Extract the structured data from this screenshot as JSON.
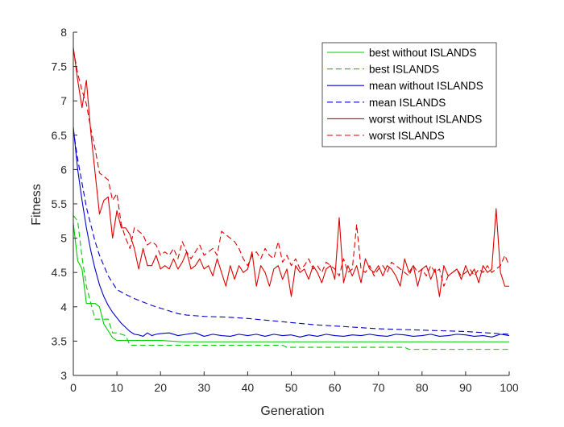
{
  "chart_data": {
    "type": "line",
    "title": "",
    "xlabel": "Generation",
    "ylabel": "Fitness",
    "xlim": [
      0,
      100
    ],
    "ylim": [
      3,
      8
    ],
    "x_ticks": [
      "0",
      "10",
      "20",
      "30",
      "40",
      "50",
      "60",
      "70",
      "80",
      "90",
      "100"
    ],
    "y_ticks": [
      "3",
      "3.5",
      "4",
      "4.5",
      "5",
      "5.5",
      "6",
      "6.5",
      "7",
      "7.5",
      "8"
    ],
    "grid": false,
    "legend_position": "top-right",
    "series": [
      {
        "name": "best without ISLANDS",
        "color": "#00cc00",
        "dash": "solid",
        "x": [
          0,
          1,
          2,
          3,
          4,
          5,
          6,
          7,
          8,
          9,
          10,
          11,
          12,
          13,
          14,
          15,
          20,
          25,
          30,
          40,
          50,
          60,
          70,
          80,
          90,
          100
        ],
        "y": [
          5.22,
          4.67,
          4.55,
          4.05,
          4.05,
          4.05,
          4.0,
          3.75,
          3.65,
          3.55,
          3.51,
          3.51,
          3.51,
          3.51,
          3.51,
          3.51,
          3.51,
          3.49,
          3.49,
          3.49,
          3.49,
          3.49,
          3.49,
          3.49,
          3.49,
          3.49
        ]
      },
      {
        "name": "best ISLANDS",
        "color": "#00cc00",
        "dash": "dashed",
        "x": [
          0,
          1,
          2,
          3,
          4,
          5,
          6,
          7,
          8,
          9,
          10,
          11,
          12,
          13,
          14,
          20,
          30,
          40,
          48,
          49,
          60,
          70,
          76,
          77,
          80,
          90,
          100
        ],
        "y": [
          5.33,
          5.25,
          4.72,
          4.3,
          4.05,
          3.82,
          3.82,
          3.82,
          3.82,
          3.62,
          3.62,
          3.6,
          3.58,
          3.44,
          3.44,
          3.44,
          3.44,
          3.44,
          3.44,
          3.41,
          3.41,
          3.41,
          3.41,
          3.38,
          3.38,
          3.38,
          3.38
        ]
      },
      {
        "name": "mean without ISLANDS",
        "color": "#0000cc",
        "dash": "solid",
        "x": [
          0,
          1,
          2,
          3,
          4,
          5,
          6,
          7,
          8,
          9,
          10,
          11,
          12,
          13,
          14,
          15,
          16,
          17,
          18,
          19,
          20,
          22,
          24,
          26,
          28,
          30,
          32,
          34,
          36,
          38,
          40,
          42,
          44,
          46,
          48,
          50,
          52,
          54,
          56,
          58,
          60,
          62,
          64,
          66,
          68,
          70,
          72,
          74,
          76,
          78,
          80,
          82,
          84,
          86,
          88,
          90,
          92,
          94,
          96,
          98,
          100
        ],
        "y": [
          6.62,
          6.0,
          5.55,
          5.15,
          4.82,
          4.55,
          4.32,
          4.15,
          4.02,
          3.92,
          3.84,
          3.76,
          3.7,
          3.64,
          3.6,
          3.59,
          3.57,
          3.62,
          3.58,
          3.6,
          3.61,
          3.62,
          3.58,
          3.6,
          3.62,
          3.57,
          3.6,
          3.58,
          3.57,
          3.6,
          3.58,
          3.6,
          3.57,
          3.6,
          3.58,
          3.59,
          3.56,
          3.59,
          3.57,
          3.6,
          3.58,
          3.57,
          3.59,
          3.58,
          3.6,
          3.58,
          3.57,
          3.6,
          3.59,
          3.57,
          3.58,
          3.6,
          3.57,
          3.58,
          3.6,
          3.59,
          3.57,
          3.58,
          3.56,
          3.6,
          3.58
        ]
      },
      {
        "name": "mean ISLANDS",
        "color": "#0000cc",
        "dash": "dashed",
        "x": [
          0,
          1,
          2,
          3,
          4,
          5,
          6,
          7,
          8,
          9,
          10,
          12,
          14,
          16,
          18,
          20,
          22,
          24,
          26,
          28,
          30,
          35,
          40,
          45,
          50,
          55,
          60,
          65,
          70,
          75,
          80,
          85,
          90,
          95,
          100
        ],
        "y": [
          6.58,
          6.15,
          5.8,
          5.45,
          5.2,
          4.95,
          4.75,
          4.6,
          4.45,
          4.35,
          4.25,
          4.18,
          4.12,
          4.07,
          4.02,
          3.98,
          3.94,
          3.9,
          3.88,
          3.87,
          3.86,
          3.85,
          3.83,
          3.8,
          3.77,
          3.74,
          3.72,
          3.7,
          3.68,
          3.67,
          3.66,
          3.65,
          3.64,
          3.62,
          3.6
        ]
      },
      {
        "name": "worst without ISLANDS",
        "color": "#dd0000",
        "dash": "solid",
        "x": [
          0,
          1,
          2,
          3,
          4,
          5,
          6,
          7,
          8,
          9,
          10,
          11,
          12,
          13,
          14,
          15,
          16,
          17,
          18,
          19,
          20,
          21,
          22,
          23,
          24,
          25,
          26,
          27,
          28,
          29,
          30,
          31,
          32,
          33,
          34,
          35,
          36,
          37,
          38,
          39,
          40,
          41,
          42,
          43,
          44,
          45,
          46,
          47,
          48,
          49,
          50,
          51,
          52,
          53,
          54,
          55,
          56,
          57,
          58,
          59,
          60,
          61,
          62,
          63,
          64,
          65,
          66,
          67,
          68,
          69,
          70,
          71,
          72,
          73,
          74,
          75,
          76,
          77,
          78,
          79,
          80,
          81,
          82,
          83,
          84,
          85,
          86,
          87,
          88,
          89,
          90,
          91,
          92,
          93,
          94,
          95,
          96,
          97,
          98,
          99,
          100
        ],
        "y": [
          7.78,
          7.3,
          6.9,
          7.3,
          6.55,
          5.95,
          5.35,
          5.55,
          5.6,
          5.0,
          5.4,
          5.15,
          5.15,
          5.05,
          4.85,
          4.55,
          4.85,
          4.6,
          4.6,
          4.75,
          4.55,
          4.6,
          4.55,
          4.7,
          4.55,
          4.65,
          4.8,
          4.55,
          4.6,
          4.7,
          4.55,
          4.6,
          4.45,
          4.7,
          4.5,
          4.3,
          4.6,
          4.4,
          4.6,
          4.5,
          4.55,
          4.8,
          4.3,
          4.6,
          4.5,
          4.3,
          4.55,
          4.6,
          4.4,
          4.55,
          4.15,
          4.6,
          4.5,
          4.55,
          4.4,
          4.6,
          4.5,
          4.35,
          4.55,
          4.6,
          4.4,
          5.3,
          4.35,
          4.6,
          4.45,
          4.6,
          4.35,
          4.7,
          4.55,
          4.5,
          4.6,
          4.45,
          4.6,
          4.55,
          4.45,
          4.3,
          4.7,
          4.5,
          4.6,
          4.3,
          4.55,
          4.6,
          4.4,
          4.55,
          4.15,
          4.6,
          4.45,
          4.5,
          4.55,
          4.4,
          4.6,
          4.45,
          4.55,
          4.35,
          4.6,
          4.5,
          4.55,
          5.43,
          4.5,
          4.3,
          4.3
        ]
      },
      {
        "name": "worst ISLANDS",
        "color": "#dd0000",
        "dash": "dashed",
        "x": [
          0,
          1,
          2,
          3,
          4,
          5,
          6,
          7,
          8,
          9,
          10,
          11,
          12,
          13,
          14,
          15,
          16,
          17,
          18,
          19,
          20,
          21,
          22,
          23,
          24,
          25,
          26,
          27,
          28,
          29,
          30,
          31,
          32,
          33,
          34,
          35,
          36,
          37,
          38,
          39,
          40,
          41,
          42,
          43,
          44,
          45,
          46,
          47,
          48,
          49,
          50,
          51,
          52,
          53,
          54,
          55,
          56,
          57,
          58,
          59,
          60,
          61,
          62,
          63,
          64,
          65,
          66,
          67,
          68,
          69,
          70,
          71,
          72,
          73,
          74,
          75,
          76,
          77,
          78,
          79,
          80,
          81,
          82,
          83,
          84,
          85,
          86,
          87,
          88,
          89,
          90,
          91,
          92,
          93,
          94,
          95,
          96,
          97,
          98,
          99,
          100
        ],
        "y": [
          7.75,
          7.4,
          7.15,
          6.95,
          6.6,
          6.3,
          5.95,
          5.9,
          5.85,
          5.55,
          5.65,
          5.2,
          5.0,
          4.85,
          5.15,
          5.1,
          5.05,
          4.9,
          4.95,
          4.9,
          4.75,
          4.8,
          4.75,
          4.85,
          4.7,
          4.95,
          4.8,
          4.7,
          4.8,
          4.9,
          4.75,
          4.8,
          4.85,
          4.75,
          5.1,
          5.05,
          5.0,
          4.95,
          4.85,
          4.7,
          4.6,
          4.75,
          4.8,
          4.7,
          4.85,
          4.75,
          4.7,
          4.95,
          4.65,
          4.75,
          4.6,
          4.7,
          4.55,
          4.6,
          4.7,
          4.55,
          4.6,
          4.5,
          4.65,
          4.6,
          4.55,
          4.45,
          4.7,
          4.5,
          4.55,
          5.2,
          4.55,
          4.5,
          4.6,
          4.45,
          4.55,
          4.6,
          4.5,
          4.65,
          4.6,
          4.55,
          4.5,
          4.45,
          4.6,
          4.5,
          4.55,
          4.45,
          4.6,
          4.5,
          4.55,
          4.3,
          4.45,
          4.5,
          4.55,
          4.45,
          4.5,
          4.55,
          4.45,
          4.55,
          4.5,
          4.6,
          4.5,
          4.55,
          4.6,
          4.75,
          4.6
        ]
      }
    ]
  }
}
